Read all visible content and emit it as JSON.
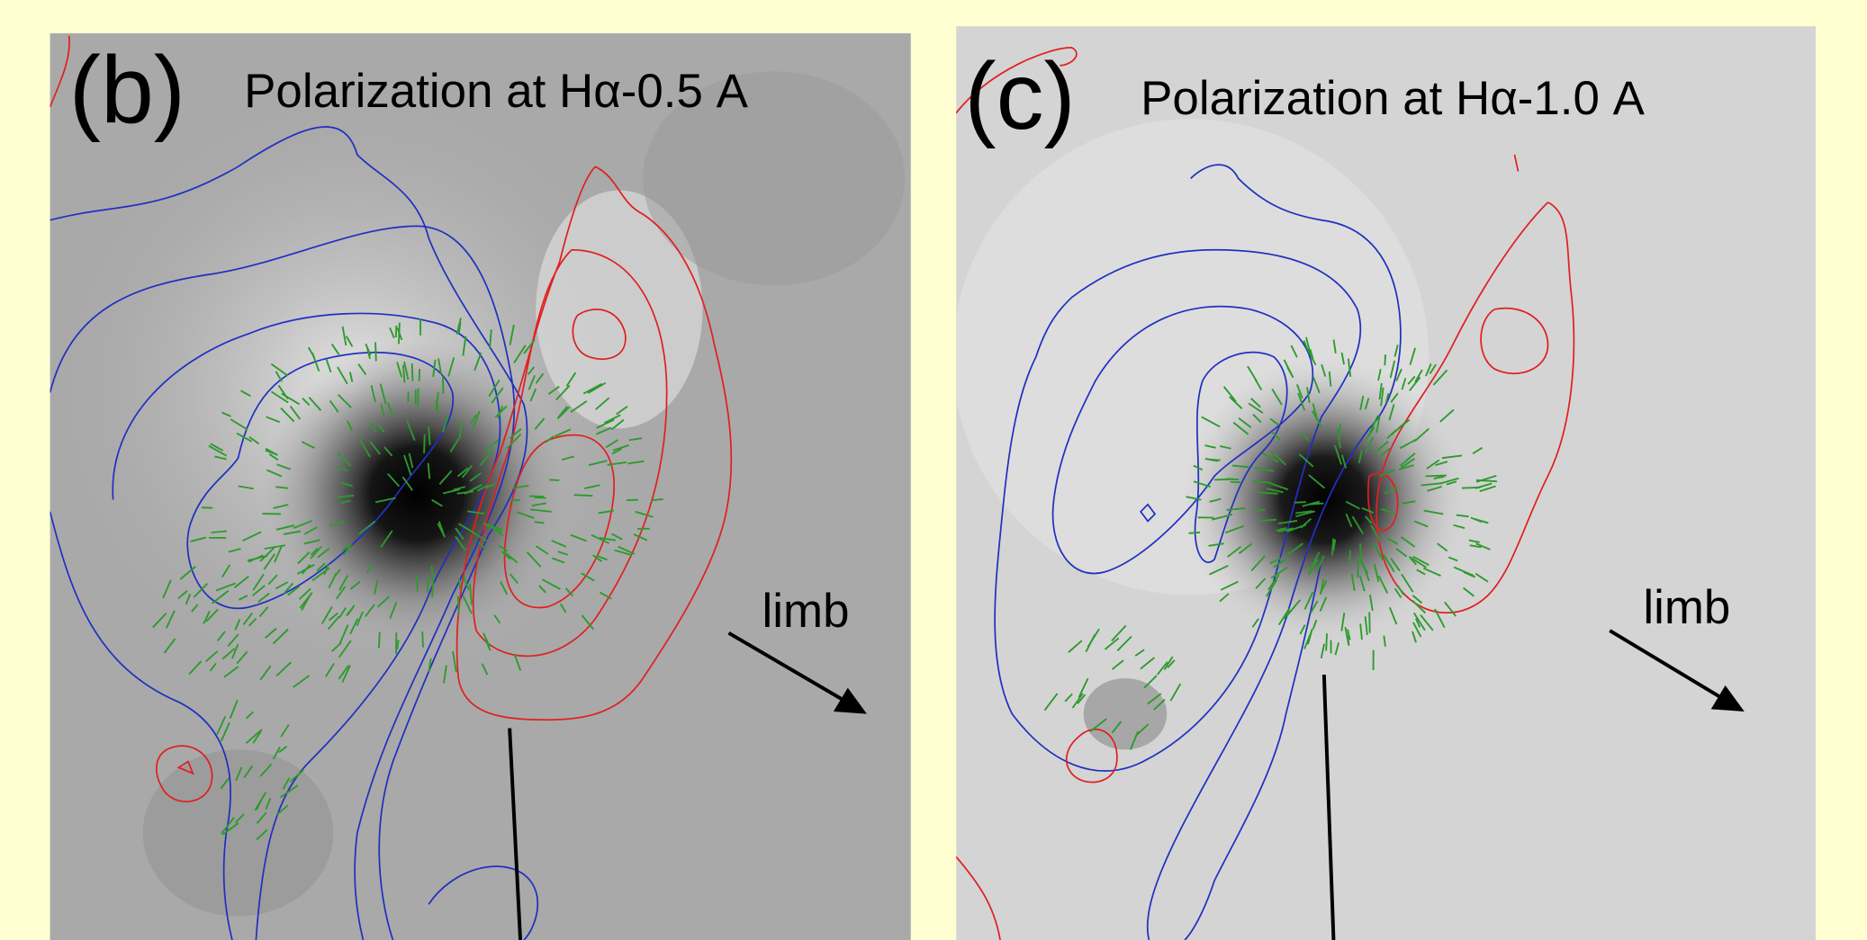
{
  "panels": [
    {
      "label": "(b)",
      "title": "Polarization at Hα-0.5 A",
      "direction_label": "limb"
    },
    {
      "label": "(c)",
      "title": "Polarization at Hα-1.0 A",
      "direction_label": "limb"
    }
  ]
}
